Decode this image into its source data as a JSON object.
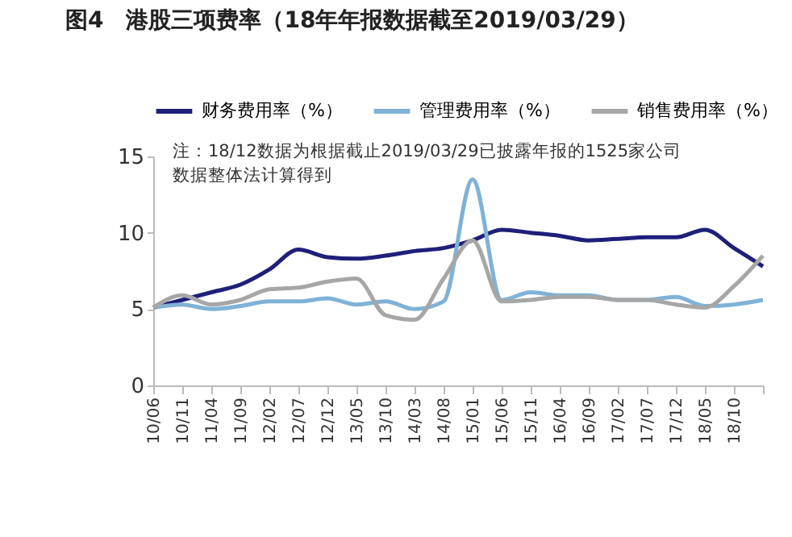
{
  "chart_data": {
    "type": "line",
    "title": "图4　港股三项费率（18年年报数据截至2019/03/29）",
    "categories": [
      "10/06",
      "10/11",
      "11/04",
      "11/09",
      "12/02",
      "12/07",
      "12/12",
      "13/05",
      "13/10",
      "14/03",
      "14/08",
      "15/01",
      "15/06",
      "15/11",
      "16/04",
      "16/09",
      "17/02",
      "17/07",
      "17/12",
      "18/05",
      "18/10",
      null
    ],
    "series": [
      {
        "name": "财务费用率（%）",
        "color": "#1f1f7a",
        "values": [
          5.1,
          5.6,
          6.1,
          6.6,
          7.6,
          8.9,
          8.4,
          8.3,
          8.5,
          8.8,
          9.0,
          9.5,
          10.2,
          10.0,
          9.8,
          9.5,
          9.6,
          9.7,
          9.7,
          10.2,
          9.0,
          7.8
        ]
      },
      {
        "name": "管理费用率（%）",
        "color": "#7fb2d6",
        "values": [
          5.1,
          5.3,
          5.0,
          5.2,
          5.5,
          5.5,
          5.7,
          5.3,
          5.5,
          5.0,
          5.5,
          13.5,
          5.6,
          6.1,
          5.9,
          5.9,
          5.6,
          5.6,
          5.8,
          5.2,
          5.3,
          5.6
        ]
      },
      {
        "name": "销售费用率（%）",
        "color": "#a6a6a6",
        "values": [
          5.1,
          5.9,
          5.3,
          5.6,
          6.3,
          6.4,
          6.8,
          7.0,
          4.6,
          4.3,
          7.0,
          9.5,
          5.5,
          5.6,
          5.8,
          5.8,
          5.6,
          5.6,
          5.3,
          5.1,
          6.5,
          8.5
        ]
      }
    ],
    "ylim": [
      0,
      15
    ],
    "yticks": [
      0,
      5,
      10,
      15
    ],
    "grid": false,
    "legend": "top",
    "marker": "none",
    "line_style": "solid",
    "annotations": [
      "注：18/12数据为根据截止2019/03/29已披露年报的1525家公司数据整体法计算得到"
    ]
  }
}
